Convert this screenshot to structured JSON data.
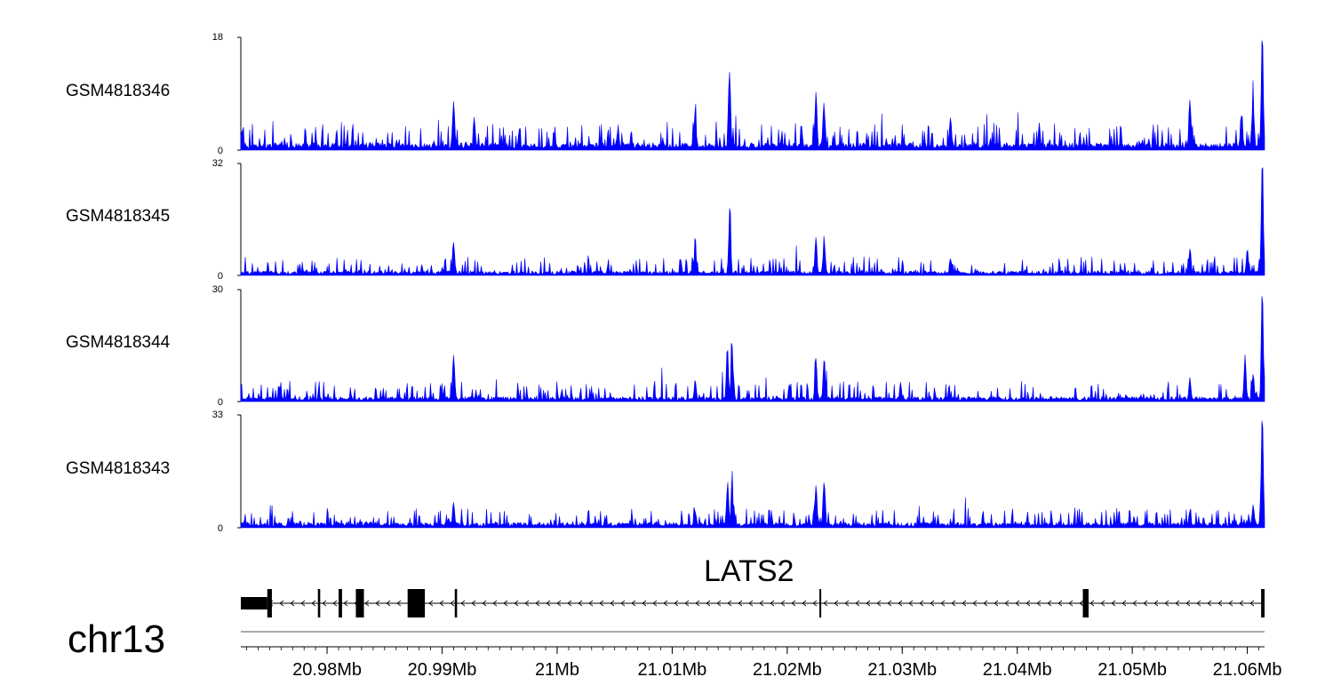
{
  "chart_data": {
    "type": "area",
    "genome_region": {
      "chromosome": "chr13",
      "start_mb": 20.9725,
      "end_mb": 21.0615
    },
    "x_ticks": [
      {
        "value": 20.98,
        "label": "20.98Mb"
      },
      {
        "value": 20.99,
        "label": "20.99Mb"
      },
      {
        "value": 21.0,
        "label": "21Mb"
      },
      {
        "value": 21.01,
        "label": "21.01Mb"
      },
      {
        "value": 21.02,
        "label": "21.02Mb"
      },
      {
        "value": 21.03,
        "label": "21.03Mb"
      },
      {
        "value": 21.04,
        "label": "21.04Mb"
      },
      {
        "value": 21.05,
        "label": "21.05Mb"
      },
      {
        "value": 21.06,
        "label": "21.06Mb"
      }
    ],
    "color": "#0000ff",
    "tracks": [
      {
        "name": "GSM4818346",
        "ymin": 0,
        "ymax": 18,
        "ymax_label": "18",
        "ymin_label": "0",
        "baseline": 0.9,
        "noise": 2.0,
        "peaks": [
          [
            20.991,
            7.5
          ],
          [
            20.9928,
            3.5
          ],
          [
            21.0053,
            3.0
          ],
          [
            21.012,
            5.5
          ],
          [
            21.015,
            11.5
          ],
          [
            21.0225,
            8.5
          ],
          [
            21.0232,
            7.0
          ],
          [
            21.0342,
            5.0
          ],
          [
            21.055,
            7.5
          ],
          [
            21.0595,
            5.0
          ],
          [
            21.0605,
            7.5
          ],
          [
            21.0613,
            18.0
          ],
          [
            21.0617,
            7.0
          ]
        ]
      },
      {
        "name": "GSM4818345",
        "ymin": 0,
        "ymax": 32,
        "ymax_label": "32",
        "ymin_label": "0",
        "baseline": 1.0,
        "noise": 2.5,
        "peaks": [
          [
            20.991,
            8.5
          ],
          [
            21.012,
            5.5
          ],
          [
            21.015,
            17.5
          ],
          [
            21.0225,
            10.0
          ],
          [
            21.0232,
            8.0
          ],
          [
            21.0342,
            4.5
          ],
          [
            21.055,
            6.5
          ],
          [
            21.06,
            7.0
          ],
          [
            21.0613,
            32.0
          ],
          [
            21.0617,
            8.0
          ]
        ]
      },
      {
        "name": "GSM4818344",
        "ymin": 0,
        "ymax": 30,
        "ymax_label": "30",
        "ymin_label": "0",
        "baseline": 1.0,
        "noise": 2.5,
        "peaks": [
          [
            20.991,
            11.5
          ],
          [
            21.012,
            5.0
          ],
          [
            21.0148,
            14.0
          ],
          [
            21.0152,
            15.0
          ],
          [
            21.0225,
            10.5
          ],
          [
            21.0232,
            10.0
          ],
          [
            21.055,
            5.5
          ],
          [
            21.0598,
            11.5
          ],
          [
            21.0605,
            7.0
          ],
          [
            21.0613,
            29.5
          ],
          [
            21.0617,
            7.0
          ]
        ]
      },
      {
        "name": "GSM4818343",
        "ymin": 0,
        "ymax": 33,
        "ymax_label": "33",
        "ymin_label": "0",
        "baseline": 1.2,
        "noise": 2.5,
        "peaks": [
          [
            20.991,
            7.0
          ],
          [
            21.012,
            4.0
          ],
          [
            21.0148,
            11.0
          ],
          [
            21.0152,
            12.5
          ],
          [
            21.0225,
            12.0
          ],
          [
            21.0232,
            12.5
          ],
          [
            21.055,
            4.5
          ],
          [
            21.0605,
            6.0
          ],
          [
            21.0613,
            33.0
          ],
          [
            21.0617,
            6.0
          ]
        ]
      }
    ],
    "gene": {
      "name": "LATS2",
      "strand": "-",
      "start_mb": 20.9725,
      "end_mb": 21.0615,
      "thick_start_mb": 20.9748,
      "exons": [
        [
          20.9725,
          20.9748,
          "utr"
        ],
        [
          20.9748,
          20.9752,
          "cds"
        ],
        [
          20.9792,
          20.9794,
          "cds"
        ],
        [
          20.981,
          20.9813,
          "cds"
        ],
        [
          20.9825,
          20.9832,
          "cds"
        ],
        [
          20.987,
          20.9885,
          "cds"
        ],
        [
          20.9911,
          20.9913,
          "cds"
        ],
        [
          21.0228,
          21.0229,
          "cds"
        ],
        [
          21.0457,
          21.0462,
          "cds"
        ],
        [
          21.0612,
          21.0615,
          "cds"
        ]
      ]
    }
  }
}
